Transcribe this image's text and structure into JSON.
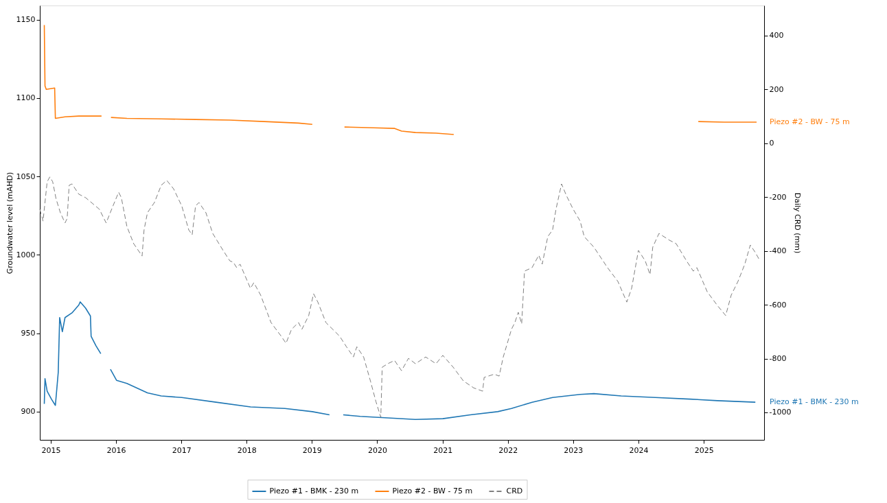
{
  "chart_data": {
    "type": "line",
    "xlabel": null,
    "ylabel": "Groundwater level (mAHD)",
    "y2label": "Daily CRD (mm)",
    "xlim": [
      "2014-11-01",
      "2025-12-04"
    ],
    "xticks": [
      "2015",
      "2016",
      "2017",
      "2018",
      "2019",
      "2020",
      "2021",
      "2022",
      "2023",
      "2024",
      "2025"
    ],
    "ylim": [
      882,
      1159
    ],
    "yticks": [
      900,
      950,
      1000,
      1050,
      1100,
      1150
    ],
    "y2lim": [
      -1102,
      512
    ],
    "y2ticks": [
      {
        "value": -1000,
        "label": "-1000"
      },
      -800,
      -600,
      -400,
      -200,
      0,
      200,
      400
    ],
    "grid": false,
    "legend": "bottom",
    "marker": "none",
    "series": [
      {
        "name": "Piezo #1 - BMK - 230 m",
        "color": "#1f77b4",
        "axis": "y",
        "line_style": "solid",
        "x": [
          "2014-11-26",
          "2014-11-30",
          "2014-12-12",
          "2015-01-05",
          "2015-01-27",
          "2015-02-12",
          "2015-02-20",
          "2015-03-07",
          "2015-03-22",
          "2015-04-30",
          "2015-06-07",
          "2015-06-15",
          "2015-07-15",
          "2015-08-11",
          "2015-08-15",
          "2015-09-11",
          "2015-10-08",
          "2015-11-01",
          "2015-12-01",
          "2016-01-04",
          "2016-03-02",
          "2016-06-25",
          "2016-09-10",
          "2017-01-03",
          "2017-07-14",
          "2018-01-23",
          "2018-08-03",
          "2019-01-03",
          "2019-04-09",
          "2019-05-15",
          "2019-06-25",
          "2019-09-28",
          "2020-03-01",
          "2020-08-01",
          "2021-01-02",
          "2021-06-05",
          "2021-11-05",
          "2022-01-21",
          "2022-05-16",
          "2022-09-08",
          "2023-02-09",
          "2023-04-27",
          "2023-09-27",
          "2024-04-05",
          "2024-10-16",
          "2025-03-18",
          "2025-10-16"
        ],
        "values": [
          905,
          921,
          913,
          908,
          904,
          925,
          960,
          951,
          960,
          963,
          968,
          970,
          966,
          961,
          948,
          942,
          937,
          null,
          927,
          920,
          918,
          912,
          910,
          909,
          906,
          903,
          902,
          900,
          898,
          null,
          898,
          897,
          896,
          895,
          895.5,
          898,
          900,
          902,
          906,
          909,
          911,
          911.5,
          910,
          909,
          908,
          907,
          906
        ]
      },
      {
        "name": "Piezo #2 - BW - 75 m",
        "color": "#ff7f0e",
        "axis": "y",
        "line_style": "solid",
        "x": [
          "2014-11-26",
          "2014-11-30",
          "2014-12-07",
          "2015-01-23",
          "2015-01-27",
          "2015-03-22",
          "2015-06-07",
          "2015-10-12",
          "2015-11-10",
          "2015-12-04",
          "2016-03-02",
          "2016-09-10",
          "2017-03-21",
          "2017-09-28",
          "2018-04-09",
          "2018-10-18",
          "2019-01-03",
          "2019-04-01",
          "2019-07-02",
          "2019-12-13",
          "2020-04-08",
          "2020-05-16",
          "2020-08-02",
          "2020-11-25",
          "2021-03-04",
          "2023-01-01",
          "2024-12-01",
          "2025-04-26",
          "2025-10-23"
        ],
        "values": [
          1146.5,
          1107.7,
          1105.5,
          1106.4,
          1087,
          1088,
          1088.5,
          1088.5,
          null,
          1087.6,
          1087,
          1086.7,
          1086.3,
          1085.9,
          1085,
          1084,
          1083.2,
          null,
          1081.5,
          1081,
          1080.6,
          1078.9,
          1078,
          1077.6,
          1076.7,
          null,
          1085,
          1084.6,
          1084.6
        ]
      },
      {
        "name": "CRD",
        "color": "#808080",
        "axis": "y2",
        "line_style": "dashed",
        "x": [
          "2014-11-01",
          "2014-11-19",
          "2014-12-12",
          "2014-12-27",
          "2015-01-12",
          "2015-01-31",
          "2015-02-24",
          "2015-03-22",
          "2015-04-03",
          "2015-04-14",
          "2015-04-30",
          "2015-06-07",
          "2015-07-15",
          "2015-09-30",
          "2015-11-07",
          "2015-12-15",
          "2016-01-16",
          "2016-01-31",
          "2016-03-02",
          "2016-04-09",
          "2016-05-18",
          "2016-05-26",
          "2016-06-06",
          "2016-06-25",
          "2016-08-03",
          "2016-09-10",
          "2016-10-11",
          "2016-11-18",
          "2017-01-03",
          "2017-02-11",
          "2017-03-02",
          "2017-03-21",
          "2017-04-09",
          "2017-05-18",
          "2017-06-25",
          "2017-08-22",
          "2017-09-29",
          "2017-10-18",
          "2017-11-06",
          "2017-11-25",
          "2018-01-22",
          "2018-02-10",
          "2018-03-20",
          "2018-05-17",
          "2018-07-13",
          "2018-08-09",
          "2018-09-09",
          "2018-10-18",
          "2018-11-06",
          "2018-12-14",
          "2019-01-10",
          "2019-02-03",
          "2019-03-20",
          "2019-06-05",
          "2019-07-13",
          "2019-08-21",
          "2019-09-09",
          "2019-10-17",
          "2019-11-24",
          "2019-12-25",
          "2020-01-21",
          "2020-01-29",
          "2020-02-29",
          "2020-04-07",
          "2020-05-16",
          "2020-06-24",
          "2020-08-02",
          "2020-09-28",
          "2020-11-25",
          "2021-01-02",
          "2021-03-01",
          "2021-04-27",
          "2021-06-24",
          "2021-08-13",
          "2021-08-21",
          "2021-10-17",
          "2021-11-13",
          "2021-12-06",
          "2022-01-21",
          "2022-02-09",
          "2022-02-28",
          "2022-03-19",
          "2022-04-04",
          "2022-05-16",
          "2022-06-23",
          "2022-07-12",
          "2022-08-12",
          "2022-09-08",
          "2022-09-27",
          "2022-10-28",
          "2022-11-24",
          "2023-01-01",
          "2023-02-09",
          "2023-03-04",
          "2023-04-27",
          "2023-07-12",
          "2023-09-08",
          "2023-10-28",
          "2023-11-24",
          "2024-01-01",
          "2024-02-08",
          "2024-03-06",
          "2024-03-21",
          "2024-04-25",
          "2024-06-22",
          "2024-07-30",
          "2024-09-26",
          "2024-11-03",
          "2024-11-23",
          "2025-01-20",
          "2025-03-18",
          "2025-05-03",
          "2025-06-03",
          "2025-07-11",
          "2025-08-18",
          "2025-09-18",
          "2025-10-16",
          "2025-11-11"
        ],
        "values": [
          -245,
          -289,
          -143,
          -125,
          -143,
          -207,
          -258,
          -296,
          -279,
          -156,
          -151,
          -189,
          -202,
          -245,
          -296,
          -233,
          -182,
          -202,
          -309,
          -373,
          -411,
          -419,
          -322,
          -258,
          -220,
          -156,
          -138,
          -169,
          -233,
          -322,
          -340,
          -233,
          -220,
          -258,
          -335,
          -398,
          -437,
          -442,
          -462,
          -449,
          -539,
          -518,
          -564,
          -666,
          -717,
          -743,
          -691,
          -666,
          -691,
          -640,
          -559,
          -590,
          -666,
          -717,
          -756,
          -794,
          -756,
          -794,
          -883,
          -960,
          -1018,
          -832,
          -819,
          -807,
          -845,
          -799,
          -819,
          -794,
          -819,
          -788,
          -832,
          -883,
          -909,
          -921,
          -870,
          -858,
          -865,
          -794,
          -691,
          -666,
          -628,
          -671,
          -475,
          -462,
          -416,
          -449,
          -347,
          -322,
          -245,
          -151,
          -194,
          -245,
          -289,
          -347,
          -386,
          -462,
          -513,
          -590,
          -539,
          -398,
          -437,
          -488,
          -386,
          -335,
          -360,
          -373,
          -437,
          -475,
          -462,
          -552,
          -603,
          -640,
          -564,
          -513,
          -449,
          -378,
          -406,
          -437
        ]
      }
    ]
  }
}
